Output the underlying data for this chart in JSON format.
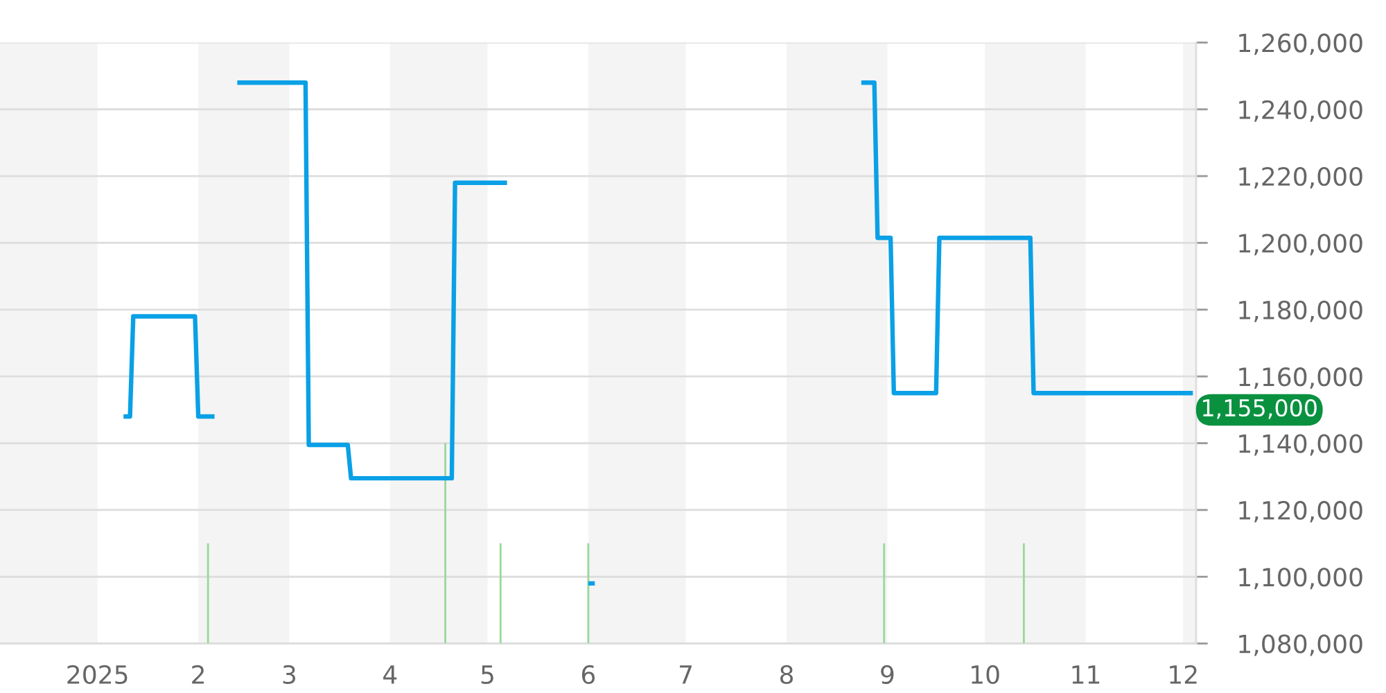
{
  "chart_data": {
    "type": "line",
    "xlim": [
      "2024-12-02",
      "2025-12-05"
    ],
    "xticks": [
      {
        "value": "2025-01-01",
        "label": "2025"
      },
      {
        "value": "2025-02-01",
        "label": "2"
      },
      {
        "value": "2025-03-01",
        "label": "3"
      },
      {
        "value": "2025-04-01",
        "label": "4"
      },
      {
        "value": "2025-05-01",
        "label": "5"
      },
      {
        "value": "2025-06-01",
        "label": "6"
      },
      {
        "value": "2025-07-01",
        "label": "7"
      },
      {
        "value": "2025-08-01",
        "label": "8"
      },
      {
        "value": "2025-09-01",
        "label": "9"
      },
      {
        "value": "2025-10-01",
        "label": "10"
      },
      {
        "value": "2025-11-01",
        "label": "11"
      },
      {
        "value": "2025-12-01",
        "label": "12"
      }
    ],
    "ylim": [
      1080000,
      1260000
    ],
    "yticks": [
      {
        "value": 1080000,
        "label": "1,080,000"
      },
      {
        "value": 1100000,
        "label": "1,100,000"
      },
      {
        "value": 1120000,
        "label": "1,120,000"
      },
      {
        "value": 1140000,
        "label": "1,140,000"
      },
      {
        "value": 1160000,
        "label": "1,160,000"
      },
      {
        "value": 1180000,
        "label": "1,180,000"
      },
      {
        "value": 1200000,
        "label": "1,200,000"
      },
      {
        "value": 1220000,
        "label": "1,220,000"
      },
      {
        "value": 1240000,
        "label": "1,240,000"
      },
      {
        "value": 1260000,
        "label": "1,260,000"
      }
    ],
    "grid": "y",
    "bands": [
      {
        "axis": "x",
        "from": "2024-12-02",
        "to": "2025-01-01",
        "color": "#f4f4f4"
      },
      {
        "axis": "x",
        "from": "2025-02-01",
        "to": "2025-03-01",
        "color": "#f4f4f4"
      },
      {
        "axis": "x",
        "from": "2025-04-01",
        "to": "2025-05-01",
        "color": "#f4f4f4"
      },
      {
        "axis": "x",
        "from": "2025-06-01",
        "to": "2025-07-01",
        "color": "#f4f4f4"
      },
      {
        "axis": "x",
        "from": "2025-08-01",
        "to": "2025-09-01",
        "color": "#f4f4f4"
      },
      {
        "axis": "x",
        "from": "2025-10-01",
        "to": "2025-11-01",
        "color": "#f4f4f4"
      },
      {
        "axis": "x",
        "from": "2025-12-01",
        "to": "2025-12-05",
        "color": "#f4f4f4"
      }
    ],
    "series": [
      {
        "type": "bar",
        "color": "#9ad89a",
        "x": [
          "2025-02-04",
          "2025-04-18",
          "2025-05-05",
          "2025-06-01",
          "2025-08-31",
          "2025-10-13"
        ],
        "values": [
          30000,
          60000,
          30000,
          30000,
          30000,
          30000
        ],
        "base": [
          1080000,
          1080000,
          1080000,
          1080000,
          1080000,
          1080000
        ]
      },
      {
        "color": "#0aa0e6",
        "x": [
          "2025-01-09",
          "2025-01-11",
          "2025-01-12",
          "2025-01-31",
          "2025-02-01",
          "2025-02-06",
          "2025-02-09",
          "2025-02-13",
          "2025-03-06",
          "2025-03-07",
          "2025-03-19",
          "2025-03-20",
          "2025-04-20",
          "2025-04-21",
          "2025-05-07",
          "2025-05-20",
          "2025-06-01",
          "2025-06-03",
          "2025-07-15",
          "2025-08-24",
          "2025-08-28",
          "2025-08-29",
          "2025-09-02",
          "2025-09-03",
          "2025-09-16",
          "2025-09-17",
          "2025-10-15",
          "2025-10-16",
          "2025-12-04"
        ],
        "values": [
          1148000,
          1148000,
          1178000,
          1178000,
          1148000,
          1148000,
          null,
          1248000,
          1248000,
          1139500,
          1139500,
          1129500,
          1129500,
          1218000,
          1218000,
          null,
          1098000,
          1098000,
          null,
          1248000,
          1248000,
          1201500,
          1201500,
          1155000,
          1155000,
          1201500,
          1201500,
          1155000,
          1155000
        ]
      }
    ],
    "annotations": [
      {
        "text": "1,155,000",
        "x": "2025-12-04",
        "y": 1155000
      }
    ]
  }
}
